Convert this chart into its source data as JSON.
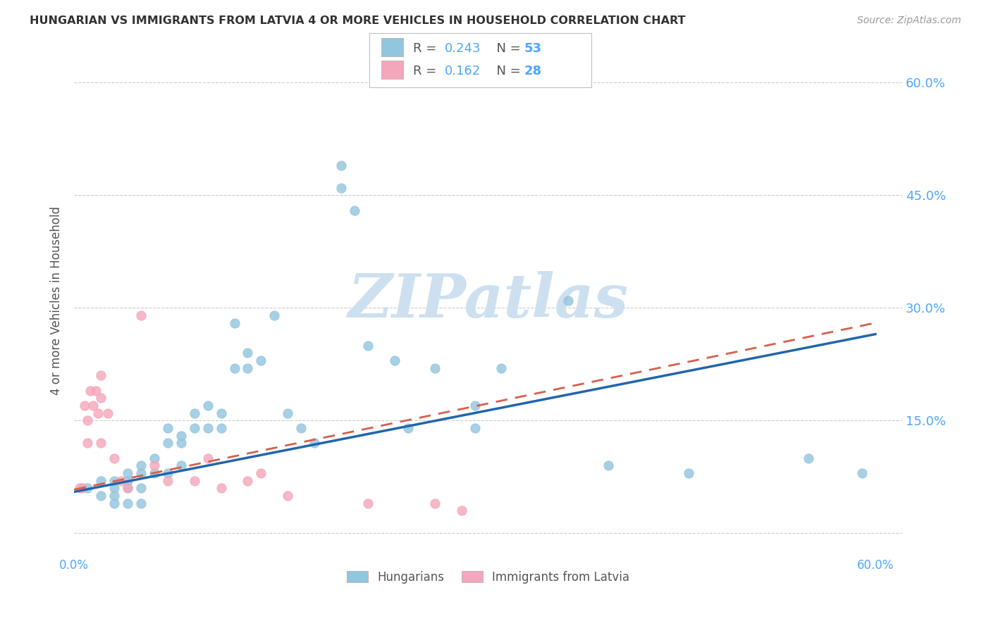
{
  "title": "HUNGARIAN VS IMMIGRANTS FROM LATVIA 4 OR MORE VEHICLES IN HOUSEHOLD CORRELATION CHART",
  "source": "Source: ZipAtlas.com",
  "ylabel": "4 or more Vehicles in Household",
  "xlim": [
    0.0,
    0.62
  ],
  "ylim": [
    -0.03,
    0.65
  ],
  "yticks": [
    0.0,
    0.15,
    0.3,
    0.45,
    0.6
  ],
  "ytick_labels_right": [
    "",
    "15.0%",
    "30.0%",
    "45.0%",
    "60.0%"
  ],
  "xtick_positions": [
    0.0,
    0.1,
    0.2,
    0.3,
    0.4,
    0.5,
    0.6
  ],
  "xtick_labels": [
    "0.0%",
    "",
    "",
    "",
    "",
    "",
    "60.0%"
  ],
  "blue_color": "#92c5de",
  "pink_color": "#f4a6ba",
  "line_blue_color": "#2166ac",
  "line_pink_color": "#d6604d",
  "grid_color": "#cccccc",
  "background_color": "#ffffff",
  "watermark": "ZIPatlas",
  "watermark_color": "#cce0f0",
  "label_color": "#4da6ff",
  "text_color": "#555555",
  "title_color": "#333333",
  "source_color": "#999999",
  "blue_x": [
    0.01,
    0.02,
    0.02,
    0.03,
    0.03,
    0.03,
    0.03,
    0.04,
    0.04,
    0.04,
    0.04,
    0.05,
    0.05,
    0.05,
    0.05,
    0.06,
    0.06,
    0.07,
    0.07,
    0.07,
    0.08,
    0.08,
    0.08,
    0.09,
    0.09,
    0.1,
    0.1,
    0.11,
    0.11,
    0.12,
    0.12,
    0.13,
    0.13,
    0.14,
    0.15,
    0.16,
    0.17,
    0.18,
    0.2,
    0.2,
    0.21,
    0.22,
    0.24,
    0.25,
    0.27,
    0.3,
    0.3,
    0.32,
    0.37,
    0.4,
    0.46,
    0.55,
    0.59
  ],
  "blue_y": [
    0.06,
    0.07,
    0.05,
    0.07,
    0.06,
    0.05,
    0.04,
    0.08,
    0.07,
    0.06,
    0.04,
    0.09,
    0.08,
    0.06,
    0.04,
    0.1,
    0.08,
    0.14,
    0.12,
    0.08,
    0.13,
    0.12,
    0.09,
    0.16,
    0.14,
    0.17,
    0.14,
    0.16,
    0.14,
    0.28,
    0.22,
    0.24,
    0.22,
    0.23,
    0.29,
    0.16,
    0.14,
    0.12,
    0.49,
    0.46,
    0.43,
    0.25,
    0.23,
    0.14,
    0.22,
    0.17,
    0.14,
    0.22,
    0.31,
    0.09,
    0.08,
    0.1,
    0.08
  ],
  "pink_x": [
    0.004,
    0.006,
    0.008,
    0.01,
    0.01,
    0.012,
    0.014,
    0.016,
    0.018,
    0.02,
    0.02,
    0.02,
    0.025,
    0.03,
    0.035,
    0.04,
    0.05,
    0.06,
    0.07,
    0.09,
    0.1,
    0.11,
    0.13,
    0.14,
    0.16,
    0.22,
    0.27,
    0.29
  ],
  "pink_y": [
    0.06,
    0.06,
    0.17,
    0.15,
    0.12,
    0.19,
    0.17,
    0.19,
    0.16,
    0.21,
    0.18,
    0.12,
    0.16,
    0.1,
    0.07,
    0.06,
    0.29,
    0.09,
    0.07,
    0.07,
    0.1,
    0.06,
    0.07,
    0.08,
    0.05,
    0.04,
    0.04,
    0.03
  ],
  "blue_line_x0": 0.0,
  "blue_line_x1": 0.6,
  "blue_line_y0": 0.055,
  "blue_line_y1": 0.265,
  "pink_line_x0": 0.0,
  "pink_line_x1": 0.6,
  "pink_line_y0": 0.058,
  "pink_line_y1": 0.28,
  "legend_r1": "R = 0.243",
  "legend_n1": "N = 53",
  "legend_r2": "R = 0.162",
  "legend_n2": "N = 28"
}
